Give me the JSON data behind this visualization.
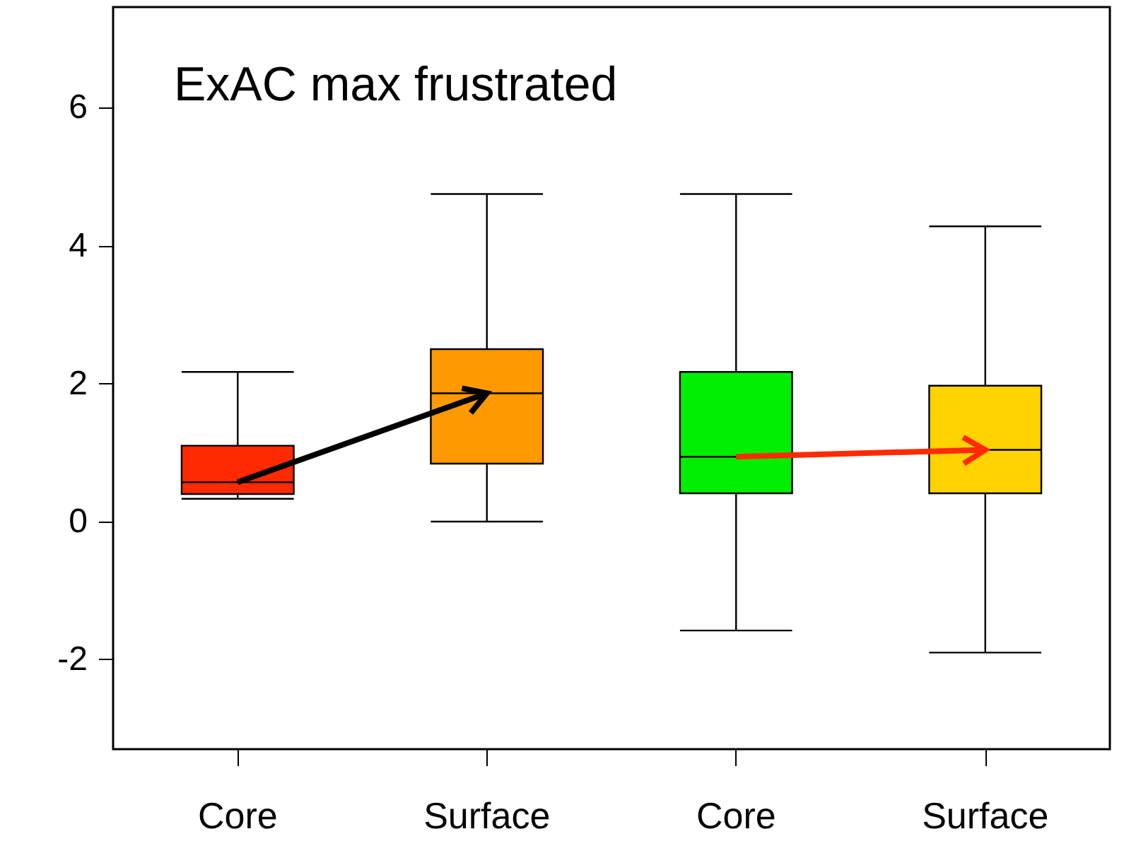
{
  "chart_data": {
    "type": "box",
    "title": "ExAC max frustrated",
    "categories": [
      "Core",
      "Surface",
      "Core",
      "Surface"
    ],
    "colors": [
      "#ff2a00",
      "#ff9900",
      "#00ee00",
      "#ffd200"
    ],
    "boxes": [
      {
        "low": 0.33,
        "q1": 0.4,
        "median": 0.57,
        "q3": 1.1,
        "high": 2.17
      },
      {
        "low": 0.0,
        "q1": 0.84,
        "median": 1.86,
        "q3": 2.5,
        "high": 4.75
      },
      {
        "low": -1.58,
        "q1": 0.41,
        "median": 0.94,
        "q3": 2.17,
        "high": 4.75
      },
      {
        "low": -1.9,
        "q1": 0.41,
        "median": 1.04,
        "q3": 1.97,
        "high": 4.28
      }
    ],
    "ylim": [
      -3.3,
      7.46
    ],
    "yticks": [
      -2,
      0,
      2,
      4,
      6
    ],
    "grid": false
  }
}
